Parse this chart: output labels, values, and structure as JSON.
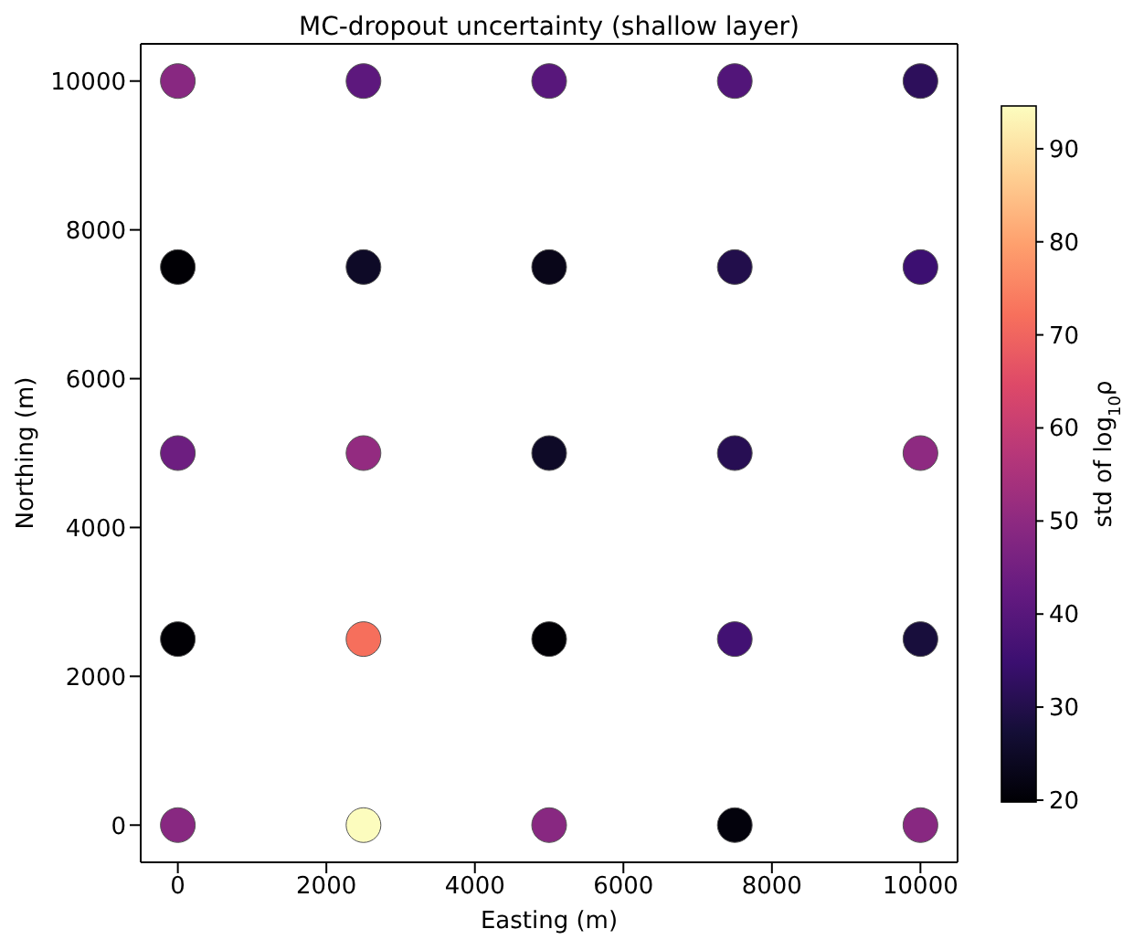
{
  "chart_data": {
    "type": "scatter",
    "title": "MC-dropout uncertainty (shallow layer)",
    "xlabel": "Easting (m)",
    "ylabel": "Northing (m)",
    "clabel": "std of log$_{10}$ρ",
    "x": [
      0,
      2500,
      5000,
      7500,
      10000,
      0,
      2500,
      5000,
      7500,
      10000,
      0,
      2500,
      5000,
      7500,
      10000,
      0,
      2500,
      5000,
      7500,
      10000,
      0,
      2500,
      5000,
      7500,
      10000
    ],
    "values": [
      10000,
      10000,
      10000,
      10000,
      10000,
      7500,
      7500,
      7500,
      7500,
      7500,
      5000,
      5000,
      5000,
      5000,
      5000,
      2500,
      2500,
      2500,
      2500,
      2500,
      0,
      0,
      0,
      0,
      0
    ],
    "cvalues": [
      49,
      41,
      40,
      39,
      32,
      20,
      25,
      23,
      30,
      35,
      44,
      51,
      25,
      31,
      50,
      20,
      72,
      20,
      36,
      28,
      49,
      94.5,
      49,
      21,
      49
    ],
    "xlim": [
      -500,
      10500
    ],
    "ylim": [
      -500,
      10500
    ],
    "xticks": [
      0,
      2000,
      4000,
      6000,
      8000,
      10000
    ],
    "yticks": [
      0,
      2000,
      4000,
      6000,
      8000,
      10000
    ],
    "clim": [
      19.8,
      94.6
    ],
    "cticks": [
      20,
      30,
      40,
      50,
      60,
      70,
      80,
      90
    ],
    "marker": "circle",
    "grid": false,
    "legend": false
  }
}
